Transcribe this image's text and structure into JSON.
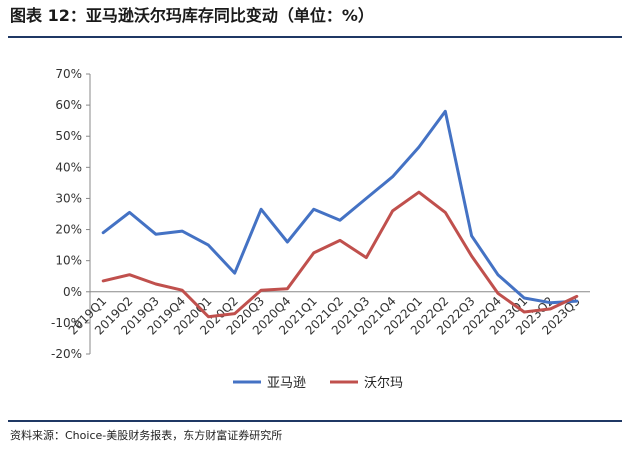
{
  "figure": {
    "title": "图表 12：亚马逊沃尔玛库存同比变动（单位：%）",
    "source": "资料来源：Choice-美股财务报表，东方财富证券研究所"
  },
  "chart_data": {
    "type": "line",
    "title": "图表 12：亚马逊沃尔玛库存同比变动（单位：%）",
    "xlabel": "",
    "ylabel": "",
    "ylim": [
      -20,
      70
    ],
    "yticks": [
      "70%",
      "60%",
      "50%",
      "40%",
      "30%",
      "20%",
      "10%",
      "0%",
      "-10%",
      "-20%"
    ],
    "ytick_values": [
      70,
      60,
      50,
      40,
      30,
      20,
      10,
      0,
      -10,
      -20
    ],
    "grid": false,
    "legend_position": "bottom",
    "categories": [
      "2019Q1",
      "2019Q2",
      "2019Q3",
      "2019Q4",
      "2020Q1",
      "2020Q2",
      "2020Q3",
      "2020Q4",
      "2021Q1",
      "2021Q2",
      "2021Q3",
      "2021Q4",
      "2022Q1",
      "2022Q2",
      "2022Q3",
      "2022Q4",
      "2023Q1",
      "2023Q2",
      "2023Q3"
    ],
    "series": [
      {
        "name": "亚马逊",
        "color": "#4472c4",
        "values": [
          19,
          25.5,
          18.5,
          19.5,
          15,
          6,
          26.5,
          16,
          26.5,
          23,
          30,
          37,
          46.5,
          58,
          18,
          5.5,
          -2,
          -3.5,
          -3
        ]
      },
      {
        "name": "沃尔玛",
        "color": "#c0504d",
        "values": [
          3.5,
          5.5,
          2.5,
          0.5,
          -8,
          -7,
          0.5,
          1,
          12.5,
          16.5,
          11,
          26,
          32,
          25.5,
          11.5,
          -0.5,
          -6.5,
          -5.5,
          -1.5
        ]
      }
    ]
  }
}
